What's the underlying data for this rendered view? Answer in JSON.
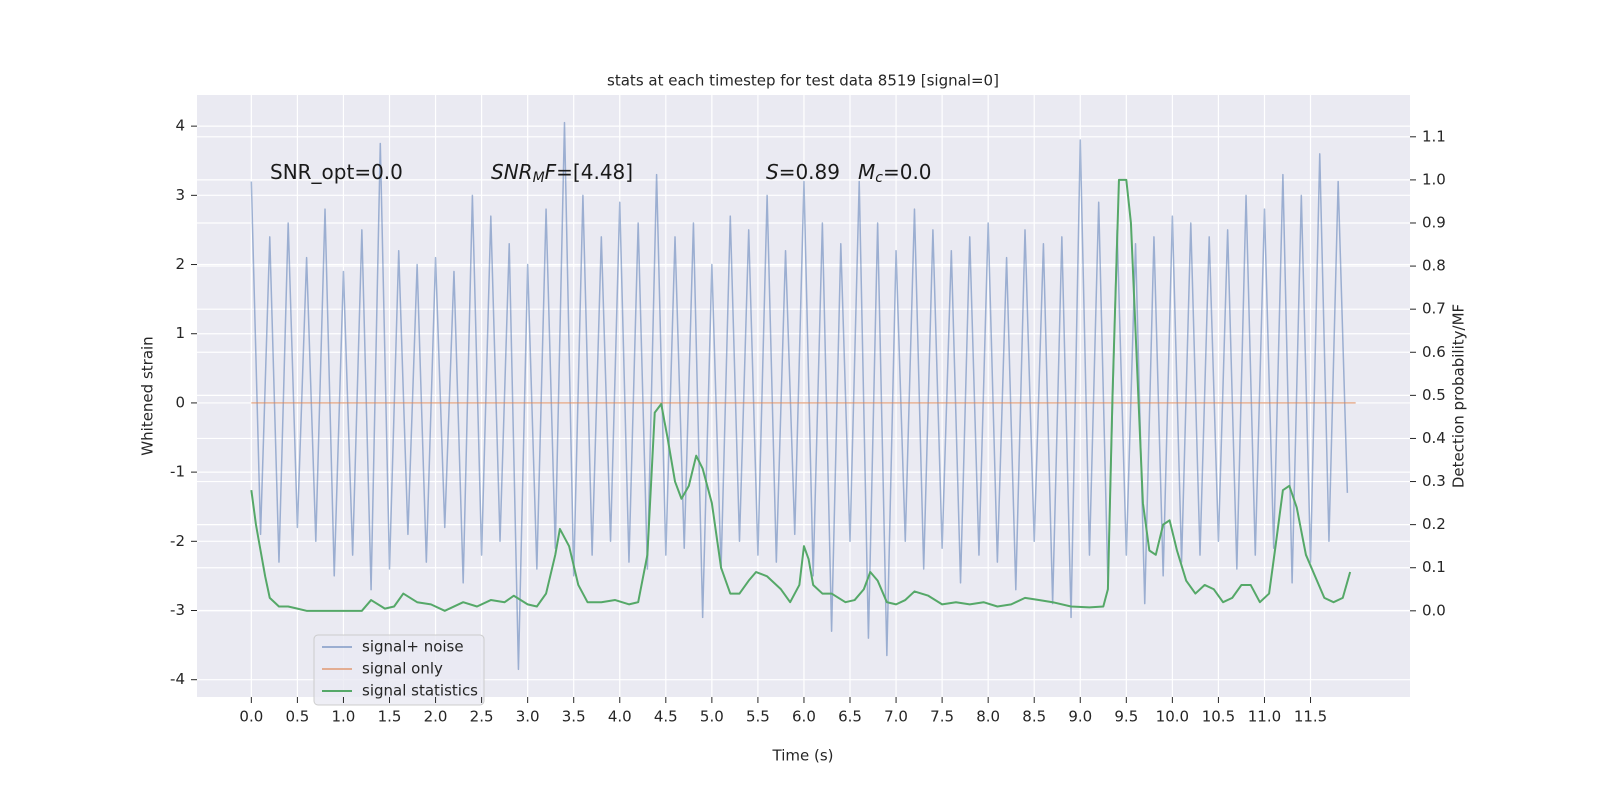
{
  "chart_data": {
    "type": "line",
    "title": "stats at each timestep for test data 8519 [signal=0]",
    "xlabel": "Time (s)",
    "ylabel": "Whitened strain",
    "y2label": "Detection probability/MF",
    "xlim": [
      -0.59,
      12.58
    ],
    "ylim": [
      -4.25,
      4.45
    ],
    "y2lim": [
      -0.2,
      1.197
    ],
    "grid": true,
    "legend": "lower left",
    "xticks": [
      {
        "value": 0,
        "label": "0.0"
      },
      0.5,
      {
        "value": 1,
        "label": "1.0"
      },
      1.5,
      {
        "value": 2,
        "label": "2.0"
      },
      2.5,
      {
        "value": 3,
        "label": "3.0"
      },
      3.5,
      {
        "value": 4,
        "label": "4.0"
      },
      4.5,
      {
        "value": 5,
        "label": "5.0"
      },
      5.5,
      {
        "value": 6,
        "label": "6.0"
      },
      6.5,
      {
        "value": 7,
        "label": "7.0"
      },
      7.5,
      {
        "value": 8,
        "label": "8.0"
      },
      8.5,
      {
        "value": 9,
        "label": "9.0"
      },
      9.5,
      {
        "value": 10,
        "label": "10.0"
      },
      10.5,
      {
        "value": 11,
        "label": "11.0"
      },
      11.5
    ],
    "yticks": [
      -4,
      -3,
      -2,
      -1,
      0,
      1,
      2,
      3,
      4
    ],
    "y2ticks": [
      {
        "value": 0,
        "label": "0.0"
      },
      0.1,
      0.2,
      0.3,
      0.4,
      0.5,
      0.6,
      0.7,
      0.8,
      0.9,
      {
        "value": 1,
        "label": "1.0"
      },
      1.1
    ],
    "annotations": [
      [
        {
          "text": "SNR_opt=0.0"
        }
      ],
      [
        {
          "text": "SNR",
          "style": "italic"
        },
        {
          "text": "M",
          "style": "italic-sub"
        },
        {
          "text": "F",
          "style": "italic"
        },
        {
          "text": "=[4.48]"
        }
      ],
      [
        {
          "text": "S",
          "style": "italic"
        },
        {
          "text": "=0.89"
        }
      ],
      [
        {
          "text": "M",
          "style": "italic"
        },
        {
          "text": "c",
          "style": "italic-sub"
        },
        {
          "text": "=0.0"
        }
      ]
    ],
    "series": [
      {
        "name": "signal+ noise",
        "color": "#4c72b0",
        "alpha": 0.5,
        "axis": "y",
        "x": [
          0,
          0.1,
          0.2,
          0.3,
          0.4,
          0.5,
          0.6,
          0.7,
          0.8,
          0.9,
          1,
          1.1,
          1.2,
          1.3,
          1.4,
          1.5,
          1.6,
          1.7,
          1.8,
          1.9,
          2,
          2.1,
          2.2,
          2.3,
          2.4,
          2.5,
          2.6,
          2.7,
          2.8,
          2.9,
          3,
          3.1,
          3.2,
          3.3,
          3.4,
          3.5,
          3.6,
          3.7,
          3.8,
          3.9,
          4,
          4.1,
          4.2,
          4.3,
          4.4,
          4.5,
          4.6,
          4.7,
          4.8,
          4.9,
          5,
          5.1,
          5.2,
          5.3,
          5.4,
          5.5,
          5.6,
          5.7,
          5.8,
          5.9,
          6,
          6.1,
          6.2,
          6.3,
          6.4,
          6.5,
          6.6,
          6.7,
          6.8,
          6.9,
          7,
          7.1,
          7.2,
          7.3,
          7.4,
          7.5,
          7.6,
          7.7,
          7.8,
          7.9,
          8,
          8.1,
          8.2,
          8.3,
          8.4,
          8.5,
          8.6,
          8.7,
          8.8,
          8.9,
          9,
          9.1,
          9.2,
          9.3,
          9.4,
          9.5,
          9.6,
          9.7,
          9.8,
          9.9,
          10,
          10.1,
          10.2,
          10.3,
          10.4,
          10.5,
          10.6,
          10.7,
          10.8,
          10.9,
          11,
          11.1,
          11.2,
          11.3,
          11.4,
          11.5,
          11.6,
          11.7,
          11.8,
          11.9
        ],
        "values": [
          3.2,
          -1.9,
          2.4,
          -2.3,
          2.6,
          -1.8,
          2.1,
          -2.0,
          2.8,
          -2.5,
          1.9,
          -2.2,
          2.5,
          -2.7,
          3.75,
          -2.4,
          2.2,
          -1.9,
          2.0,
          -2.3,
          2.1,
          -1.8,
          1.9,
          -2.6,
          3.0,
          -2.2,
          2.7,
          -2.0,
          2.3,
          -3.85,
          2.0,
          -2.4,
          2.8,
          -2.1,
          4.05,
          -2.5,
          3.0,
          -2.2,
          2.4,
          -2.0,
          2.9,
          -2.3,
          2.6,
          -2.4,
          3.3,
          -2.2,
          2.4,
          -2.1,
          2.6,
          -3.1,
          2.0,
          -2.4,
          2.7,
          -2.0,
          2.5,
          -2.2,
          3.0,
          -2.3,
          2.2,
          -1.9,
          3.2,
          -2.5,
          2.6,
          -3.3,
          2.3,
          -2.0,
          3.2,
          -3.4,
          2.6,
          -3.65,
          2.2,
          -2.0,
          2.8,
          -2.4,
          2.5,
          -2.1,
          2.2,
          -2.6,
          2.4,
          -2.2,
          2.6,
          -2.3,
          2.1,
          -2.7,
          2.5,
          -2.0,
          2.3,
          -2.9,
          2.4,
          -3.1,
          3.8,
          -2.2,
          2.9,
          -2.6,
          2.5,
          -2.2,
          2.3,
          -2.9,
          2.4,
          -2.5,
          2.7,
          -2.3,
          2.6,
          -2.2,
          2.4,
          -2.0,
          2.5,
          -2.4,
          3.0,
          -2.2,
          2.8,
          -2.1,
          3.3,
          -2.6,
          3.0,
          -2.3,
          3.6,
          -2.0,
          3.2,
          -1.3
        ]
      },
      {
        "name": "signal only",
        "color": "#dd8452",
        "alpha": 0.6,
        "axis": "y",
        "x": [
          0,
          11.99
        ],
        "values": [
          0,
          0
        ]
      },
      {
        "name": "signal statistics",
        "color": "#55a868",
        "alpha": 1,
        "axis": "y2",
        "x": [
          0,
          0.05,
          0.1,
          0.15,
          0.2,
          0.3,
          0.4,
          0.5,
          0.6,
          0.8,
          1.0,
          1.1,
          1.2,
          1.3,
          1.45,
          1.55,
          1.65,
          1.8,
          1.95,
          2.1,
          2.3,
          2.45,
          2.6,
          2.75,
          2.85,
          3.0,
          3.1,
          3.2,
          3.3,
          3.35,
          3.45,
          3.55,
          3.65,
          3.8,
          3.95,
          4.1,
          4.2,
          4.3,
          4.38,
          4.45,
          4.52,
          4.6,
          4.67,
          4.75,
          4.83,
          4.9,
          5.0,
          5.1,
          5.2,
          5.3,
          5.4,
          5.48,
          5.6,
          5.75,
          5.85,
          5.95,
          6.0,
          6.05,
          6.1,
          6.2,
          6.3,
          6.45,
          6.55,
          6.65,
          6.72,
          6.8,
          6.9,
          7.0,
          7.1,
          7.2,
          7.35,
          7.5,
          7.65,
          7.8,
          7.95,
          8.1,
          8.25,
          8.4,
          8.55,
          8.7,
          8.9,
          9.1,
          9.25,
          9.3,
          9.35,
          9.42,
          9.5,
          9.55,
          9.62,
          9.68,
          9.75,
          9.82,
          9.9,
          9.97,
          10.05,
          10.15,
          10.25,
          10.35,
          10.45,
          10.55,
          10.65,
          10.75,
          10.85,
          10.95,
          11.05,
          11.12,
          11.2,
          11.27,
          11.35,
          11.45,
          11.55,
          11.65,
          11.75,
          11.85,
          11.93
        ],
        "values": [
          0.28,
          0.2,
          0.14,
          0.08,
          0.03,
          0.01,
          0.01,
          0.005,
          0,
          0,
          0,
          0,
          0,
          0.025,
          0.005,
          0.01,
          0.04,
          0.02,
          0.015,
          0,
          0.02,
          0.01,
          0.025,
          0.02,
          0.035,
          0.015,
          0.01,
          0.04,
          0.13,
          0.19,
          0.15,
          0.06,
          0.02,
          0.02,
          0.025,
          0.015,
          0.02,
          0.13,
          0.46,
          0.48,
          0.4,
          0.3,
          0.26,
          0.29,
          0.36,
          0.33,
          0.25,
          0.1,
          0.04,
          0.04,
          0.07,
          0.09,
          0.08,
          0.05,
          0.02,
          0.06,
          0.15,
          0.12,
          0.06,
          0.04,
          0.04,
          0.02,
          0.025,
          0.05,
          0.09,
          0.07,
          0.02,
          0.015,
          0.025,
          0.045,
          0.035,
          0.015,
          0.02,
          0.015,
          0.02,
          0.01,
          0.015,
          0.03,
          0.025,
          0.02,
          0.01,
          0.008,
          0.01,
          0.05,
          0.5,
          1.0,
          1.0,
          0.9,
          0.55,
          0.25,
          0.14,
          0.13,
          0.2,
          0.21,
          0.14,
          0.07,
          0.04,
          0.06,
          0.05,
          0.02,
          0.03,
          0.06,
          0.06,
          0.02,
          0.04,
          0.15,
          0.28,
          0.29,
          0.24,
          0.13,
          0.08,
          0.03,
          0.02,
          0.03,
          0.09
        ]
      }
    ]
  }
}
